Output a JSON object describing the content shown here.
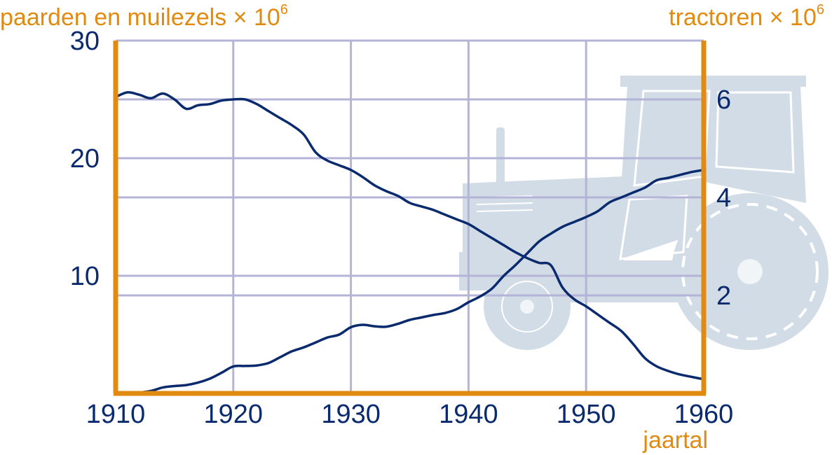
{
  "colors": {
    "axis": "#e08a10",
    "grid": "#b4b4d8",
    "line": "#0a2a6e",
    "text": "#0a2a6e",
    "tractor_bg": "#d2dce6"
  },
  "chart_data": {
    "type": "line",
    "xlabel": "jaartal",
    "ylabel_left": "paarden en muilezels × 10",
    "ylabel_left_exponent": "6",
    "ylabel_right": "tractoren × 10",
    "ylabel_right_exponent": "6",
    "xlim": [
      1910,
      1960
    ],
    "ylim_left": [
      0,
      30
    ],
    "ylim_right": [
      0,
      7.2
    ],
    "x_ticks": [
      "1910",
      "1920",
      "1930",
      "1940",
      "1950",
      "1960"
    ],
    "y_ticks_left": [
      "10",
      "20",
      "30"
    ],
    "y_ticks_right": [
      "2",
      "4",
      "6"
    ],
    "grid": true,
    "series": [
      {
        "axis": "left",
        "x": [
          1910,
          1911,
          1912,
          1913,
          1914,
          1915,
          1916,
          1917,
          1918,
          1919,
          1920,
          1921,
          1922,
          1923,
          1924,
          1925,
          1926,
          1927,
          1928,
          1929,
          1930,
          1931,
          1932,
          1933,
          1934,
          1935,
          1936,
          1937,
          1938,
          1939,
          1940,
          1941,
          1942,
          1943,
          1944,
          1945,
          1946,
          1947,
          1948,
          1949,
          1950,
          1951,
          1952,
          1953,
          1954,
          1955,
          1956,
          1957,
          1958,
          1959,
          1960
        ],
        "values": [
          25.2,
          25.6,
          25.4,
          25.1,
          25.5,
          25.0,
          24.2,
          24.5,
          24.6,
          24.9,
          25.0,
          25.0,
          24.6,
          24.0,
          23.4,
          22.8,
          22.0,
          20.5,
          19.8,
          19.4,
          19.0,
          18.4,
          17.7,
          17.2,
          16.8,
          16.2,
          15.9,
          15.6,
          15.2,
          14.8,
          14.4,
          13.8,
          13.2,
          12.6,
          12.0,
          11.5,
          11.1,
          10.9,
          9.0,
          8.0,
          7.4,
          6.7,
          6.0,
          5.3,
          4.2,
          3.0,
          2.3,
          1.9,
          1.6,
          1.4,
          1.2
        ]
      },
      {
        "axis": "right",
        "x": [
          1910,
          1911,
          1912,
          1913,
          1914,
          1915,
          1916,
          1917,
          1918,
          1919,
          1920,
          1921,
          1922,
          1923,
          1924,
          1925,
          1926,
          1927,
          1928,
          1929,
          1930,
          1931,
          1932,
          1933,
          1934,
          1935,
          1936,
          1937,
          1938,
          1939,
          1940,
          1941,
          1942,
          1943,
          1944,
          1945,
          1946,
          1947,
          1948,
          1949,
          1950,
          1951,
          1952,
          1953,
          1954,
          1955,
          1956,
          1957,
          1958,
          1959,
          1960
        ],
        "values": [
          0.02,
          0.02,
          0.02,
          0.05,
          0.12,
          0.15,
          0.17,
          0.22,
          0.3,
          0.42,
          0.55,
          0.56,
          0.57,
          0.62,
          0.74,
          0.86,
          0.94,
          1.04,
          1.14,
          1.2,
          1.35,
          1.4,
          1.37,
          1.36,
          1.42,
          1.5,
          1.55,
          1.6,
          1.64,
          1.72,
          1.86,
          1.98,
          2.14,
          2.4,
          2.62,
          2.86,
          3.1,
          3.26,
          3.4,
          3.5,
          3.6,
          3.72,
          3.9,
          4.0,
          4.1,
          4.2,
          4.35,
          4.4,
          4.46,
          4.52,
          4.56
        ]
      }
    ]
  }
}
